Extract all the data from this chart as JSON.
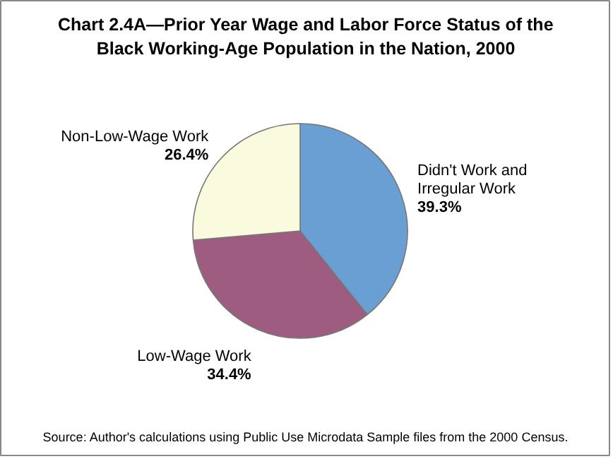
{
  "chart_data": {
    "type": "pie",
    "title": "Chart 2.4A—Prior Year Wage and Labor Force Status of the\nBlack Working-Age Population in the Nation, 2000",
    "categories": [
      "Didn't Work and\nIrregular Work",
      "Low-Wage Work",
      "Non-Low-Wage Work"
    ],
    "values": [
      39.3,
      34.4,
      26.4
    ],
    "value_labels": [
      "39.3%",
      "34.4%",
      "26.4%"
    ],
    "colors": [
      "#6a9fd4",
      "#9e5c80",
      "#fafadf"
    ],
    "annotations": [
      "Source: Author's calculations using Public Use Microdata Sample files from the 2000 Census."
    ]
  }
}
